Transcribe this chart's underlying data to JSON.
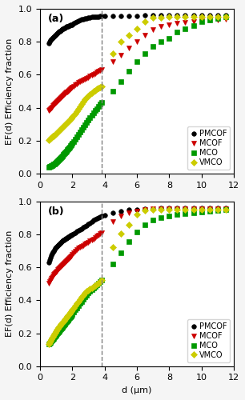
{
  "panel_a": {
    "label": "(a)",
    "PMCOF": {
      "x": [
        0.55,
        0.6,
        0.65,
        0.7,
        0.75,
        0.8,
        0.85,
        0.9,
        0.95,
        1.0,
        1.05,
        1.1,
        1.15,
        1.2,
        1.25,
        1.3,
        1.35,
        1.4,
        1.45,
        1.5,
        1.55,
        1.6,
        1.65,
        1.7,
        1.75,
        1.8,
        1.85,
        1.9,
        1.95,
        2.0,
        2.1,
        2.2,
        2.3,
        2.4,
        2.5,
        2.6,
        2.7,
        2.8,
        2.9,
        3.0,
        3.1,
        3.2,
        3.3,
        3.4,
        3.5,
        3.6,
        3.7,
        3.8,
        4.0,
        4.5,
        5.0,
        5.5,
        6.0,
        6.5,
        7.0,
        7.5,
        8.0,
        8.5,
        9.0,
        9.5,
        10.0,
        10.5,
        11.0,
        11.5
      ],
      "y": [
        0.79,
        0.8,
        0.81,
        0.815,
        0.82,
        0.825,
        0.83,
        0.835,
        0.84,
        0.845,
        0.85,
        0.855,
        0.858,
        0.862,
        0.865,
        0.868,
        0.872,
        0.876,
        0.879,
        0.882,
        0.885,
        0.888,
        0.891,
        0.893,
        0.895,
        0.897,
        0.899,
        0.901,
        0.903,
        0.905,
        0.91,
        0.915,
        0.92,
        0.925,
        0.93,
        0.935,
        0.938,
        0.941,
        0.943,
        0.945,
        0.947,
        0.949,
        0.95,
        0.951,
        0.952,
        0.953,
        0.954,
        0.955,
        0.955,
        0.956,
        0.957,
        0.958,
        0.958,
        0.959,
        0.959,
        0.96,
        0.96,
        0.96,
        0.96,
        0.96,
        0.96,
        0.96,
        0.96,
        0.96
      ],
      "color": "#000000",
      "marker": "o",
      "ms": 4
    },
    "MCOF": {
      "x": [
        0.55,
        0.6,
        0.65,
        0.7,
        0.75,
        0.8,
        0.85,
        0.9,
        0.95,
        1.0,
        1.05,
        1.1,
        1.15,
        1.2,
        1.25,
        1.3,
        1.35,
        1.4,
        1.45,
        1.5,
        1.55,
        1.6,
        1.65,
        1.7,
        1.75,
        1.8,
        1.85,
        1.9,
        1.95,
        2.0,
        2.1,
        2.2,
        2.3,
        2.4,
        2.5,
        2.6,
        2.7,
        2.8,
        2.9,
        3.0,
        3.1,
        3.2,
        3.3,
        3.4,
        3.5,
        3.6,
        3.7,
        3.8,
        4.5,
        5.0,
        5.5,
        6.0,
        6.5,
        7.0,
        7.5,
        8.0,
        8.5,
        9.0,
        9.5,
        10.0,
        10.5,
        11.0,
        11.5
      ],
      "y": [
        0.385,
        0.39,
        0.395,
        0.4,
        0.405,
        0.41,
        0.415,
        0.42,
        0.425,
        0.43,
        0.435,
        0.44,
        0.445,
        0.45,
        0.455,
        0.46,
        0.465,
        0.47,
        0.475,
        0.48,
        0.485,
        0.49,
        0.493,
        0.497,
        0.5,
        0.504,
        0.508,
        0.513,
        0.518,
        0.522,
        0.53,
        0.538,
        0.545,
        0.552,
        0.558,
        0.562,
        0.566,
        0.572,
        0.578,
        0.584,
        0.59,
        0.596,
        0.602,
        0.608,
        0.614,
        0.62,
        0.626,
        0.632,
        0.68,
        0.72,
        0.76,
        0.8,
        0.84,
        0.875,
        0.893,
        0.905,
        0.912,
        0.918,
        0.922,
        0.926,
        0.93,
        0.934,
        0.938
      ],
      "color": "#cc0000",
      "marker": "v",
      "ms": 4
    },
    "MCO": {
      "x": [
        0.55,
        0.6,
        0.65,
        0.7,
        0.75,
        0.8,
        0.85,
        0.9,
        0.95,
        1.0,
        1.05,
        1.1,
        1.15,
        1.2,
        1.25,
        1.3,
        1.35,
        1.4,
        1.45,
        1.5,
        1.55,
        1.6,
        1.65,
        1.7,
        1.75,
        1.8,
        1.85,
        1.9,
        1.95,
        2.0,
        2.1,
        2.2,
        2.3,
        2.4,
        2.5,
        2.6,
        2.7,
        2.8,
        2.9,
        3.0,
        3.1,
        3.2,
        3.3,
        3.4,
        3.5,
        3.6,
        3.7,
        3.8,
        4.5,
        5.0,
        5.5,
        6.0,
        6.5,
        7.0,
        7.5,
        8.0,
        8.5,
        9.0,
        9.5,
        10.0,
        10.5,
        11.0,
        11.5
      ],
      "y": [
        0.04,
        0.042,
        0.044,
        0.047,
        0.05,
        0.053,
        0.056,
        0.06,
        0.064,
        0.068,
        0.072,
        0.077,
        0.082,
        0.087,
        0.092,
        0.097,
        0.103,
        0.108,
        0.114,
        0.12,
        0.126,
        0.132,
        0.138,
        0.144,
        0.15,
        0.156,
        0.162,
        0.168,
        0.175,
        0.182,
        0.196,
        0.21,
        0.224,
        0.238,
        0.252,
        0.266,
        0.28,
        0.295,
        0.31,
        0.325,
        0.34,
        0.355,
        0.368,
        0.382,
        0.395,
        0.408,
        0.42,
        0.432,
        0.5,
        0.56,
        0.62,
        0.68,
        0.73,
        0.77,
        0.8,
        0.82,
        0.86,
        0.88,
        0.9,
        0.92,
        0.93,
        0.94,
        0.95
      ],
      "color": "#009900",
      "marker": "s",
      "ms": 4
    },
    "VMCO": {
      "x": [
        0.55,
        0.6,
        0.65,
        0.7,
        0.75,
        0.8,
        0.85,
        0.9,
        0.95,
        1.0,
        1.05,
        1.1,
        1.15,
        1.2,
        1.25,
        1.3,
        1.35,
        1.4,
        1.45,
        1.5,
        1.55,
        1.6,
        1.65,
        1.7,
        1.75,
        1.8,
        1.85,
        1.9,
        1.95,
        2.0,
        2.1,
        2.2,
        2.3,
        2.4,
        2.5,
        2.6,
        2.7,
        2.8,
        2.9,
        3.0,
        3.1,
        3.2,
        3.3,
        3.4,
        3.5,
        3.6,
        3.7,
        3.8,
        4.5,
        5.0,
        5.5,
        6.0,
        6.5,
        7.0,
        7.5,
        8.0,
        8.5,
        9.0,
        9.5,
        10.0,
        10.5,
        11.0,
        11.5
      ],
      "y": [
        0.205,
        0.21,
        0.214,
        0.218,
        0.222,
        0.226,
        0.23,
        0.234,
        0.238,
        0.242,
        0.246,
        0.25,
        0.255,
        0.26,
        0.265,
        0.27,
        0.275,
        0.28,
        0.285,
        0.29,
        0.295,
        0.3,
        0.305,
        0.31,
        0.315,
        0.32,
        0.325,
        0.33,
        0.336,
        0.342,
        0.354,
        0.366,
        0.38,
        0.394,
        0.408,
        0.422,
        0.436,
        0.45,
        0.462,
        0.472,
        0.482,
        0.49,
        0.498,
        0.505,
        0.512,
        0.518,
        0.524,
        0.53,
        0.73,
        0.8,
        0.84,
        0.88,
        0.92,
        0.945,
        0.948,
        0.95,
        0.95,
        0.95,
        0.95,
        0.95,
        0.95,
        0.95,
        0.95
      ],
      "color": "#cccc00",
      "marker": "D",
      "ms": 4
    }
  },
  "panel_b": {
    "label": "(b)",
    "PMCOF": {
      "x": [
        0.55,
        0.6,
        0.65,
        0.7,
        0.75,
        0.8,
        0.85,
        0.9,
        0.95,
        1.0,
        1.05,
        1.1,
        1.15,
        1.2,
        1.25,
        1.3,
        1.35,
        1.4,
        1.45,
        1.5,
        1.55,
        1.6,
        1.65,
        1.7,
        1.75,
        1.8,
        1.85,
        1.9,
        1.95,
        2.0,
        2.1,
        2.2,
        2.3,
        2.4,
        2.5,
        2.6,
        2.7,
        2.8,
        2.9,
        3.0,
        3.1,
        3.2,
        3.3,
        3.4,
        3.5,
        3.6,
        3.7,
        3.8,
        4.0,
        4.5,
        5.0,
        5.5,
        6.0,
        6.5,
        7.0,
        7.5,
        8.0,
        8.5,
        9.0,
        9.5,
        10.0,
        10.5,
        11.0,
        11.5
      ],
      "y": [
        0.63,
        0.645,
        0.66,
        0.672,
        0.682,
        0.692,
        0.7,
        0.708,
        0.715,
        0.721,
        0.727,
        0.733,
        0.738,
        0.743,
        0.748,
        0.752,
        0.756,
        0.76,
        0.764,
        0.768,
        0.772,
        0.775,
        0.778,
        0.781,
        0.784,
        0.787,
        0.79,
        0.793,
        0.796,
        0.799,
        0.805,
        0.812,
        0.818,
        0.824,
        0.83,
        0.836,
        0.842,
        0.848,
        0.855,
        0.862,
        0.87,
        0.878,
        0.886,
        0.892,
        0.897,
        0.902,
        0.907,
        0.912,
        0.918,
        0.93,
        0.94,
        0.948,
        0.952,
        0.955,
        0.957,
        0.958,
        0.959,
        0.96,
        0.96,
        0.96,
        0.96,
        0.96,
        0.96,
        0.96
      ],
      "color": "#000000",
      "marker": "o",
      "ms": 4
    },
    "MCOF": {
      "x": [
        0.55,
        0.6,
        0.65,
        0.7,
        0.75,
        0.8,
        0.85,
        0.9,
        0.95,
        1.0,
        1.05,
        1.1,
        1.15,
        1.2,
        1.25,
        1.3,
        1.35,
        1.4,
        1.45,
        1.5,
        1.55,
        1.6,
        1.65,
        1.7,
        1.75,
        1.8,
        1.85,
        1.9,
        1.95,
        2.0,
        2.1,
        2.2,
        2.3,
        2.4,
        2.5,
        2.6,
        2.7,
        2.8,
        2.9,
        3.0,
        3.1,
        3.2,
        3.3,
        3.4,
        3.5,
        3.6,
        3.7,
        3.8,
        4.5,
        5.0,
        5.5,
        6.0,
        6.5,
        7.0,
        7.5,
        8.0,
        8.5,
        9.0,
        9.5,
        10.0,
        10.5,
        11.0,
        11.5
      ],
      "y": [
        0.505,
        0.515,
        0.524,
        0.532,
        0.54,
        0.548,
        0.555,
        0.562,
        0.568,
        0.574,
        0.579,
        0.584,
        0.589,
        0.594,
        0.599,
        0.604,
        0.609,
        0.614,
        0.619,
        0.624,
        0.629,
        0.634,
        0.639,
        0.644,
        0.649,
        0.654,
        0.659,
        0.665,
        0.671,
        0.677,
        0.688,
        0.698,
        0.707,
        0.715,
        0.722,
        0.728,
        0.734,
        0.74,
        0.746,
        0.752,
        0.759,
        0.766,
        0.773,
        0.78,
        0.788,
        0.796,
        0.803,
        0.81,
        0.878,
        0.91,
        0.93,
        0.943,
        0.95,
        0.953,
        0.955,
        0.956,
        0.957,
        0.957,
        0.957,
        0.957,
        0.957,
        0.957,
        0.957
      ],
      "color": "#cc0000",
      "marker": "v",
      "ms": 4
    },
    "MCO": {
      "x": [
        0.55,
        0.6,
        0.65,
        0.7,
        0.75,
        0.8,
        0.85,
        0.9,
        0.95,
        1.0,
        1.05,
        1.1,
        1.15,
        1.2,
        1.25,
        1.3,
        1.35,
        1.4,
        1.45,
        1.5,
        1.55,
        1.6,
        1.65,
        1.7,
        1.75,
        1.8,
        1.85,
        1.9,
        1.95,
        2.0,
        2.1,
        2.2,
        2.3,
        2.4,
        2.5,
        2.6,
        2.7,
        2.8,
        2.9,
        3.0,
        3.1,
        3.2,
        3.3,
        3.4,
        3.5,
        3.6,
        3.7,
        3.8,
        4.5,
        5.0,
        5.5,
        6.0,
        6.5,
        7.0,
        7.5,
        8.0,
        8.5,
        9.0,
        9.5,
        10.0,
        10.5,
        11.0,
        11.5
      ],
      "y": [
        0.135,
        0.14,
        0.146,
        0.152,
        0.158,
        0.164,
        0.17,
        0.177,
        0.184,
        0.19,
        0.196,
        0.202,
        0.208,
        0.214,
        0.22,
        0.226,
        0.232,
        0.238,
        0.245,
        0.252,
        0.258,
        0.264,
        0.27,
        0.276,
        0.282,
        0.288,
        0.294,
        0.3,
        0.307,
        0.314,
        0.328,
        0.342,
        0.355,
        0.368,
        0.381,
        0.394,
        0.407,
        0.42,
        0.433,
        0.445,
        0.456,
        0.466,
        0.476,
        0.485,
        0.495,
        0.505,
        0.515,
        0.525,
        0.618,
        0.69,
        0.755,
        0.815,
        0.858,
        0.885,
        0.9,
        0.912,
        0.92,
        0.927,
        0.932,
        0.936,
        0.94,
        0.944,
        0.948
      ],
      "color": "#009900",
      "marker": "s",
      "ms": 4
    },
    "VMCO": {
      "x": [
        0.55,
        0.6,
        0.65,
        0.7,
        0.75,
        0.8,
        0.85,
        0.9,
        0.95,
        1.0,
        1.05,
        1.1,
        1.15,
        1.2,
        1.25,
        1.3,
        1.35,
        1.4,
        1.45,
        1.5,
        1.55,
        1.6,
        1.65,
        1.7,
        1.75,
        1.8,
        1.85,
        1.9,
        1.95,
        2.0,
        2.1,
        2.2,
        2.3,
        2.4,
        2.5,
        2.6,
        2.7,
        2.8,
        2.9,
        3.0,
        3.1,
        3.2,
        3.3,
        3.4,
        3.5,
        3.6,
        3.7,
        3.8,
        4.5,
        5.0,
        5.5,
        6.0,
        6.5,
        7.0,
        7.5,
        8.0,
        8.5,
        9.0,
        9.5,
        10.0,
        10.5,
        11.0,
        11.5
      ],
      "y": [
        0.135,
        0.145,
        0.155,
        0.164,
        0.172,
        0.18,
        0.188,
        0.196,
        0.204,
        0.212,
        0.22,
        0.228,
        0.235,
        0.242,
        0.248,
        0.254,
        0.26,
        0.266,
        0.272,
        0.278,
        0.284,
        0.29,
        0.297,
        0.303,
        0.309,
        0.315,
        0.321,
        0.328,
        0.335,
        0.342,
        0.355,
        0.368,
        0.381,
        0.394,
        0.407,
        0.42,
        0.432,
        0.444,
        0.454,
        0.462,
        0.47,
        0.477,
        0.484,
        0.49,
        0.497,
        0.505,
        0.515,
        0.525,
        0.72,
        0.805,
        0.86,
        0.92,
        0.945,
        0.948,
        0.95,
        0.95,
        0.95,
        0.95,
        0.95,
        0.95,
        0.95,
        0.95,
        0.95
      ],
      "color": "#cccc00",
      "marker": "D",
      "ms": 4
    }
  },
  "dashed_line_x": 3.8,
  "xlim": [
    0,
    12
  ],
  "ylim": [
    0.0,
    1.0
  ],
  "xlabel": "d (μm)",
  "ylabel": "EF(d) Efficiency fraction",
  "yticks": [
    0.0,
    0.2,
    0.4,
    0.6,
    0.8,
    1.0
  ],
  "xticks": [
    0,
    2,
    4,
    6,
    8,
    10,
    12
  ],
  "legend_order": [
    "PMCOF",
    "MCOF",
    "MCO",
    "VMCO"
  ],
  "legend_labels": [
    "PMCOF",
    "MCOF",
    "MCO",
    "VMCO"
  ],
  "bg_color": "#f0f0f0"
}
